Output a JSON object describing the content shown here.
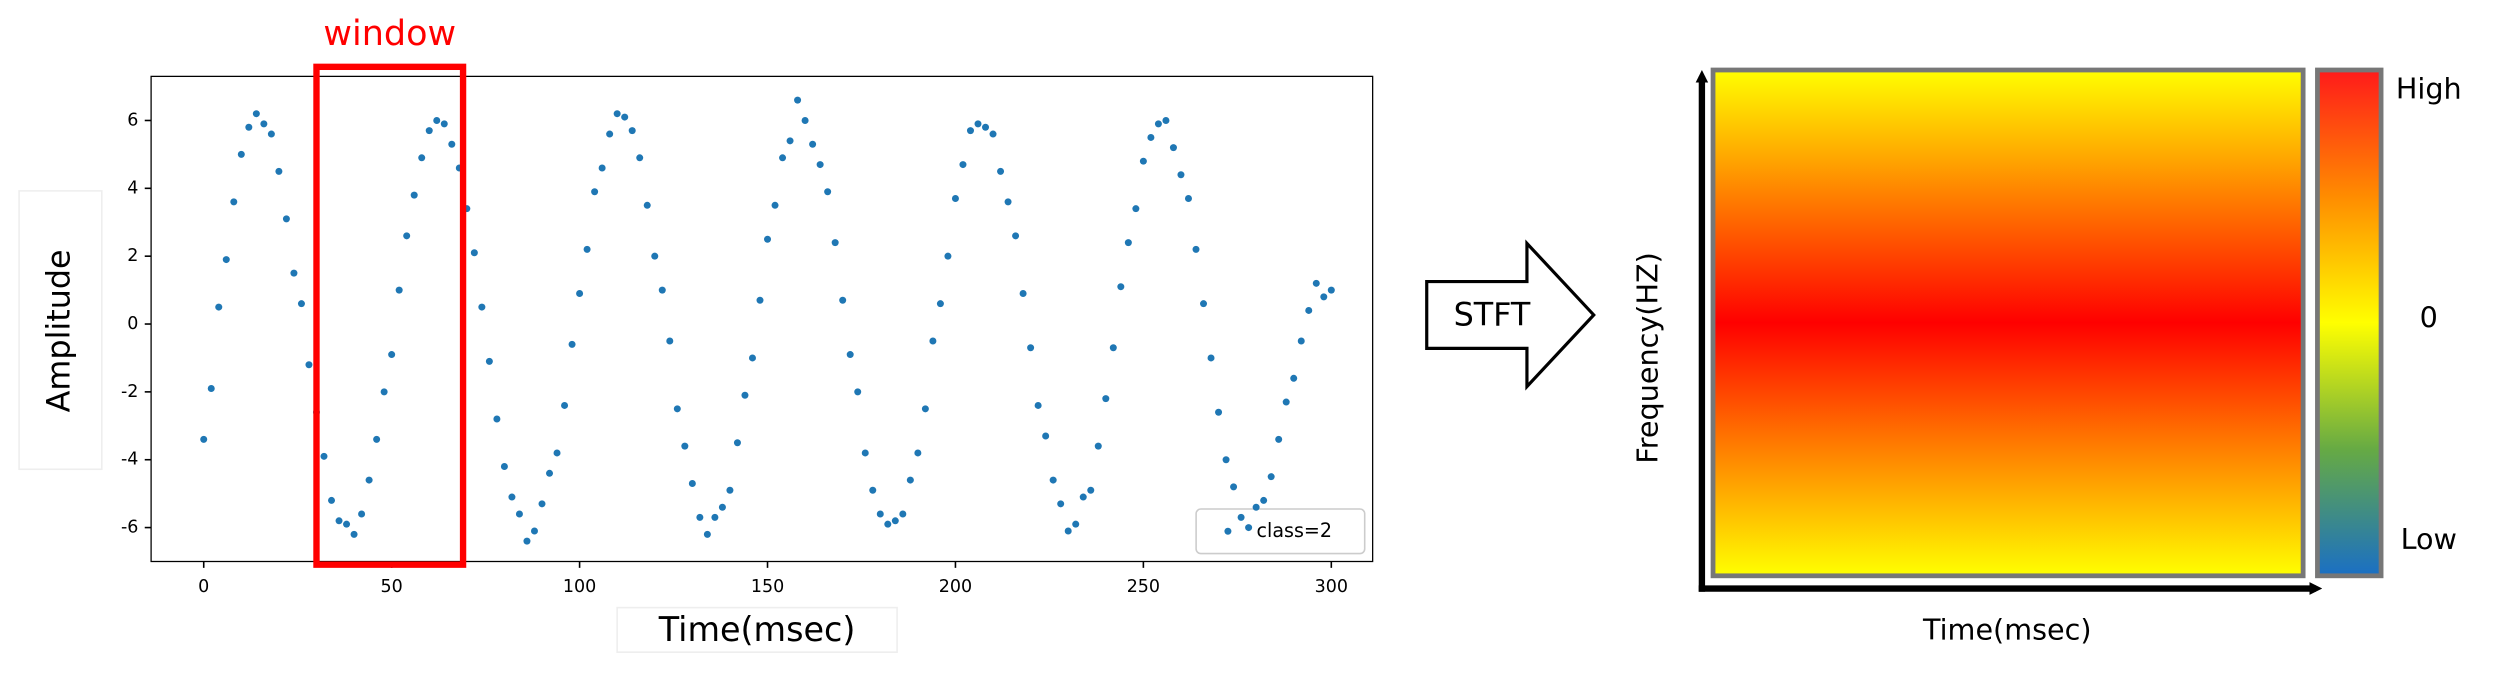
{
  "chart_data": {
    "type": "scatter",
    "x": [
      0,
      2,
      4,
      6,
      8,
      10,
      12,
      14,
      16,
      18,
      20,
      22,
      24,
      26,
      28,
      30,
      32,
      34,
      36,
      38,
      40,
      42,
      44,
      46,
      48,
      50,
      52,
      54,
      56,
      58,
      60,
      62,
      64,
      66,
      68,
      70,
      72,
      74,
      76,
      78,
      80,
      82,
      84,
      86,
      88,
      90,
      92,
      94,
      96,
      98,
      100,
      102,
      104,
      106,
      108,
      110,
      112,
      114,
      116,
      118,
      120,
      122,
      124,
      126,
      128,
      130,
      132,
      134,
      136,
      138,
      140,
      142,
      144,
      146,
      148,
      150,
      152,
      154,
      156,
      158,
      160,
      162,
      164,
      166,
      168,
      170,
      172,
      174,
      176,
      178,
      180,
      182,
      184,
      186,
      188,
      190,
      192,
      194,
      196,
      198,
      200,
      202,
      204,
      206,
      208,
      210,
      212,
      214,
      216,
      218,
      220,
      222,
      224,
      226,
      228,
      230,
      232,
      234,
      236,
      238,
      240,
      242,
      244,
      246,
      248,
      250,
      252,
      254,
      256,
      258,
      260,
      262,
      264,
      266,
      268,
      270,
      272,
      274,
      276,
      278,
      280,
      282,
      284,
      286,
      288,
      290,
      292,
      294,
      296,
      298,
      300
    ],
    "series": [
      {
        "name": "class=2",
        "color": "#1f77b4",
        "values": [
          -3.4,
          -1.9,
          0.5,
          1.9,
          3.6,
          5.0,
          5.8,
          6.2,
          5.9,
          5.6,
          4.5,
          3.1,
          1.5,
          0.6,
          -1.2,
          -2.6,
          -3.9,
          -5.2,
          -5.8,
          -5.9,
          -6.2,
          -5.6,
          -4.6,
          -3.4,
          -2.0,
          -0.9,
          1.0,
          2.6,
          3.8,
          4.9,
          5.7,
          6.0,
          5.9,
          5.3,
          4.6,
          3.4,
          2.1,
          0.5,
          -1.1,
          -2.8,
          -4.2,
          -5.1,
          -5.6,
          -6.4,
          -6.1,
          -5.3,
          -4.4,
          -3.8,
          -2.4,
          -0.6,
          0.9,
          2.2,
          3.9,
          4.6,
          5.6,
          6.2,
          6.1,
          5.7,
          4.9,
          3.5,
          2.0,
          1.0,
          -0.5,
          -2.5,
          -3.6,
          -4.7,
          -5.7,
          -6.2,
          -5.7,
          -5.4,
          -4.9,
          -3.5,
          -2.1,
          -1.0,
          0.7,
          2.5,
          3.5,
          4.9,
          5.4,
          6.6,
          6.0,
          5.3,
          4.7,
          3.9,
          2.4,
          0.7,
          -0.9,
          -2.0,
          -3.8,
          -4.9,
          -5.6,
          -5.9,
          -5.8,
          -5.6,
          -4.6,
          -3.8,
          -2.5,
          -0.5,
          0.6,
          2.0,
          3.7,
          4.7,
          5.7,
          5.9,
          5.8,
          5.6,
          4.5,
          3.6,
          2.6,
          0.9,
          -0.7,
          -2.4,
          -3.3,
          -4.6,
          -5.3,
          -6.1,
          -5.9,
          -5.1,
          -4.9,
          -3.6,
          -2.2,
          -0.7,
          1.1,
          2.4,
          3.4,
          4.8,
          5.5,
          5.9,
          6.0,
          5.2,
          4.4,
          3.7,
          2.2,
          0.6,
          -1.0,
          -2.6,
          -4.0,
          -4.8,
          -5.7,
          -6.0,
          -5.4,
          -5.2,
          -4.5,
          -3.4,
          -2.3,
          -1.6,
          -0.5,
          0.4,
          1.2,
          0.8,
          1.0
        ]
      }
    ],
    "xlim": [
      -14,
      311
    ],
    "ylim": [
      -7,
      7.3
    ],
    "xticks": [
      0,
      50,
      100,
      150,
      200,
      250,
      300
    ],
    "yticks": [
      -6,
      -4,
      -2,
      0,
      2,
      4,
      6
    ],
    "xlabel": "Time(msec)",
    "ylabel": "Amplitude",
    "window": {
      "label": "window",
      "x": [
        30,
        69
      ]
    }
  },
  "transform": {
    "label": "STFT"
  },
  "spectrogram": {
    "xlabel": "Time(msec)",
    "ylabel": "Frequency(HZ)"
  },
  "colorbar": {
    "labels": [
      "High",
      "0",
      "Low"
    ]
  }
}
